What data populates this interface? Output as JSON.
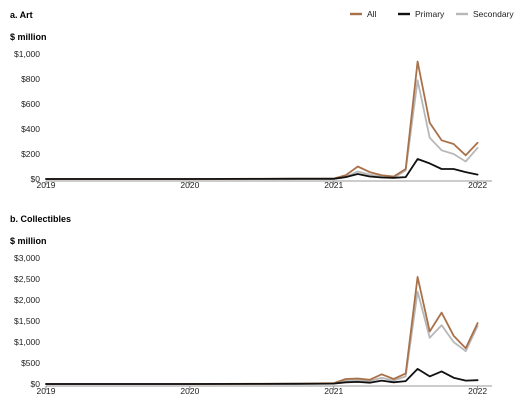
{
  "legend": [
    {
      "name": "All",
      "color": "#A9714A"
    },
    {
      "name": "Primary",
      "color": "#111111"
    },
    {
      "name": "Secondary",
      "color": "#B8B8B8"
    }
  ],
  "chart_data": [
    {
      "type": "line",
      "title": "a. Art",
      "ylabel": "$ million",
      "ylim": [
        0,
        1000
      ],
      "yticks": [
        0,
        200,
        400,
        600,
        800,
        1000
      ],
      "ytick_labels": [
        "$0",
        "$200",
        "$400",
        "$600",
        "$800",
        "$1,000"
      ],
      "xlim": [
        2019.0,
        2022.1
      ],
      "xticks": [
        2019,
        2020,
        2021,
        2022
      ],
      "xtick_labels": [
        "2019",
        "2020",
        "2021",
        "2022"
      ],
      "x": [
        2019.0,
        2019.5,
        2020.0,
        2020.5,
        2020.75,
        2021.0,
        2021.083,
        2021.167,
        2021.25,
        2021.333,
        2021.417,
        2021.5,
        2021.583,
        2021.667,
        2021.75,
        2021.833,
        2021.917,
        2022.0,
        2022.083
      ],
      "series": [
        {
          "name": "All",
          "color": "#A9714A",
          "values": [
            0,
            0,
            0,
            2,
            3,
            3,
            30,
            100,
            55,
            30,
            20,
            80,
            940,
            450,
            310,
            280,
            190,
            290,
            null
          ]
        },
        {
          "name": "Primary",
          "color": "#111111",
          "values": [
            0,
            0,
            0,
            1,
            2,
            2,
            15,
            40,
            20,
            12,
            10,
            15,
            160,
            125,
            80,
            80,
            55,
            35,
            null
          ]
        },
        {
          "name": "Secondary",
          "color": "#B8B8B8",
          "values": [
            0,
            0,
            0,
            1,
            2,
            2,
            15,
            60,
            35,
            18,
            10,
            70,
            790,
            330,
            230,
            200,
            140,
            250,
            null
          ]
        }
      ],
      "grid": false,
      "legend_position": "top-right"
    },
    {
      "type": "line",
      "title": "b. Collectibles",
      "ylabel": "$ million",
      "ylim": [
        0,
        3000
      ],
      "yticks": [
        0,
        500,
        1000,
        1500,
        2000,
        2500,
        3000
      ],
      "ytick_labels": [
        "$0",
        "$500",
        "$1,000",
        "$1,500",
        "$2,000",
        "$2,500",
        "$3,000"
      ],
      "xlim": [
        2019.0,
        2022.1
      ],
      "xticks": [
        2019,
        2020,
        2021,
        2022
      ],
      "xtick_labels": [
        "2019",
        "2020",
        "2021",
        "2022"
      ],
      "x": [
        2019.0,
        2019.5,
        2020.0,
        2020.5,
        2020.75,
        2021.0,
        2021.083,
        2021.167,
        2021.25,
        2021.333,
        2021.417,
        2021.5,
        2021.583,
        2021.667,
        2021.75,
        2021.833,
        2021.917,
        2022.0,
        2022.083
      ],
      "series": [
        {
          "name": "All",
          "color": "#A9714A",
          "values": [
            0,
            0,
            0,
            5,
            10,
            20,
            120,
            130,
            100,
            230,
            120,
            250,
            2550,
            1250,
            1700,
            1150,
            850,
            1450,
            null
          ]
        },
        {
          "name": "Primary",
          "color": "#111111",
          "values": [
            0,
            0,
            0,
            2,
            5,
            10,
            40,
            50,
            30,
            80,
            40,
            70,
            360,
            180,
            300,
            150,
            80,
            90,
            null
          ]
        },
        {
          "name": "Secondary",
          "color": "#B8B8B8",
          "values": [
            0,
            0,
            0,
            3,
            5,
            10,
            80,
            90,
            70,
            150,
            80,
            180,
            2200,
            1100,
            1400,
            1000,
            780,
            1380,
            null
          ]
        }
      ],
      "grid": false,
      "legend_position": "none"
    }
  ]
}
